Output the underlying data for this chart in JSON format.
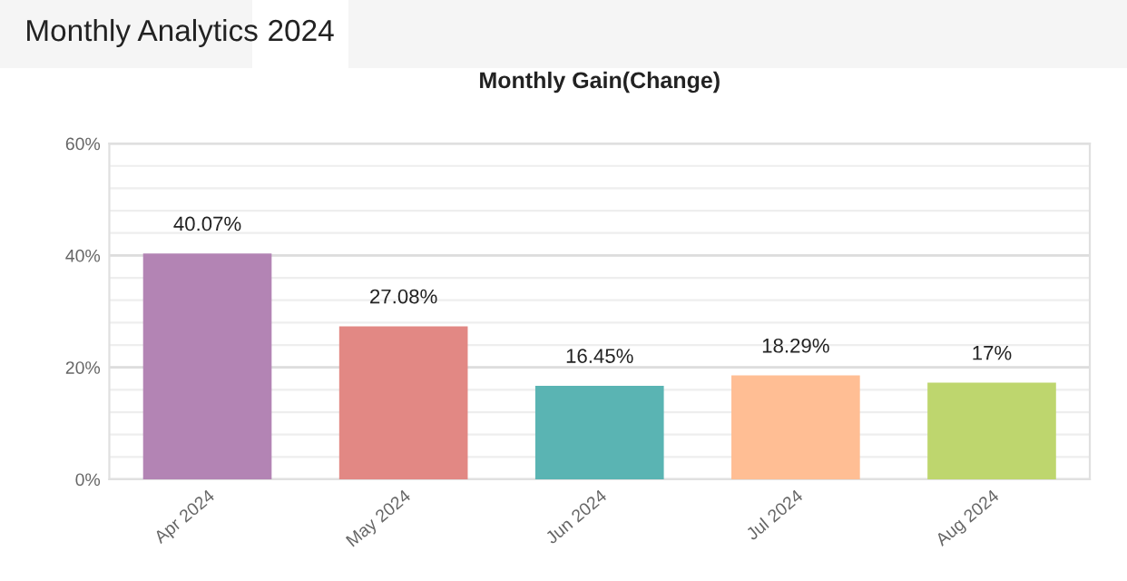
{
  "chart_data": {
    "type": "bar",
    "title": "Monthly Gain(Change)",
    "annotations": [
      "Monthly Analytics",
      "2024"
    ],
    "categories": [
      "Apr 2024",
      "May 2024",
      "Jun 2024",
      "Jul 2024",
      "Aug 2024"
    ],
    "values": [
      40.07,
      27.08,
      16.45,
      18.29,
      17
    ],
    "colors": [
      "#b384b4",
      "#e28884",
      "#5ab4b3",
      "#ffbe94",
      "#bed66e"
    ],
    "value_labels": [
      "40.07%",
      "27.08%",
      "16.45%",
      "18.29%",
      "17%"
    ],
    "ylim": [
      0,
      60
    ],
    "yticks": [
      {
        "value": 0,
        "label": "0%"
      },
      {
        "value": 4,
        "label": null
      },
      {
        "value": 8,
        "label": null
      },
      {
        "value": 12,
        "label": null
      },
      {
        "value": 16,
        "label": null
      },
      {
        "value": 20,
        "label": "20%"
      },
      {
        "value": 24,
        "label": null
      },
      {
        "value": 28,
        "label": null
      },
      {
        "value": 32,
        "label": null
      },
      {
        "value": 36,
        "label": null
      },
      {
        "value": 40,
        "label": "40%"
      },
      {
        "value": 44,
        "label": null
      },
      {
        "value": 48,
        "label": null
      },
      {
        "value": 52,
        "label": null
      },
      {
        "value": 56,
        "label": null
      },
      {
        "value": 60,
        "label": "60%"
      }
    ],
    "grid": "y",
    "legend": false
  }
}
